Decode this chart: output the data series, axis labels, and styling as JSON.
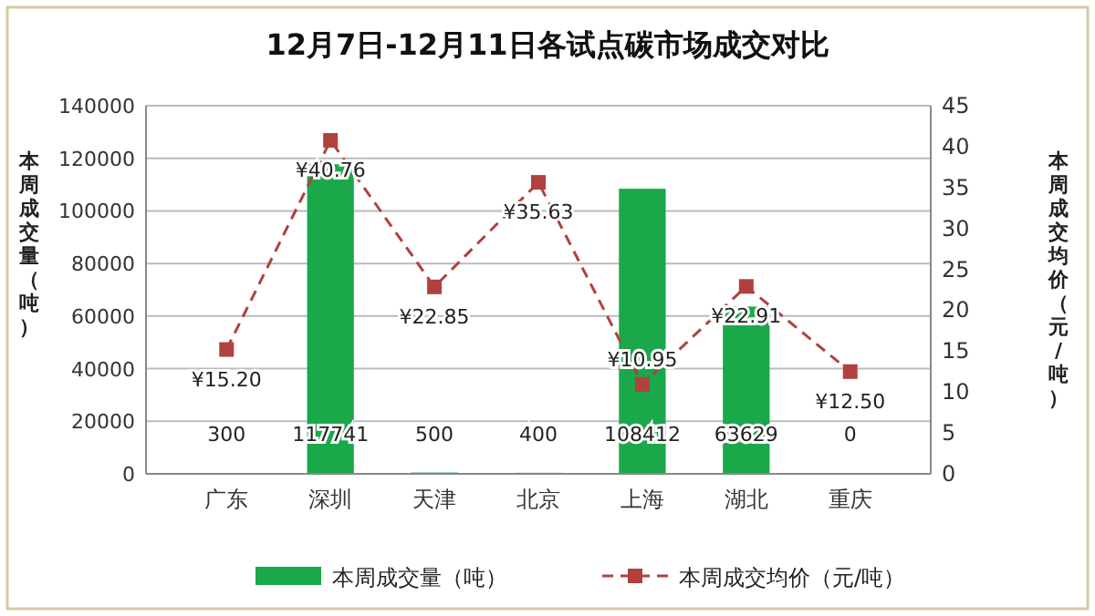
{
  "chart_data": {
    "type": "bar",
    "title": "12月7日-12月11日各试点碳市场成交对比",
    "ylabel": "本周成交量（吨）",
    "y2label": "本周成交均价（元/吨）",
    "categories": [
      "广东",
      "深圳",
      "天津",
      "北京",
      "上海",
      "湖北",
      "重庆"
    ],
    "series": [
      {
        "name": "本周成交量（吨）",
        "color": "#1aa84b",
        "values": [
          300,
          117741,
          500,
          400,
          108412,
          63629,
          0
        ],
        "value_labels": [
          "300",
          "117741",
          "500",
          "400",
          "108412",
          "63629",
          "0"
        ]
      },
      {
        "name": "本周成交均价（元/吨）",
        "type": "line",
        "axis": "y2",
        "color": "#b0413e",
        "marker": "square",
        "line_style": "dashed",
        "values": [
          15.2,
          40.76,
          22.85,
          35.63,
          10.95,
          22.91,
          12.5
        ],
        "value_labels": [
          "¥15.20",
          "¥40.76",
          "¥22.85",
          "¥35.63",
          "¥10.95",
          "¥22.91",
          "¥12.50"
        ]
      }
    ],
    "ylim": [
      0,
      140000
    ],
    "yticks": [
      0,
      20000,
      40000,
      60000,
      80000,
      100000,
      120000,
      140000
    ],
    "y2lim": [
      0,
      45
    ],
    "y2ticks": [
      0,
      5,
      10,
      15,
      20,
      25,
      30,
      35,
      40,
      45
    ],
    "grid": "y",
    "legend": "bottom"
  }
}
